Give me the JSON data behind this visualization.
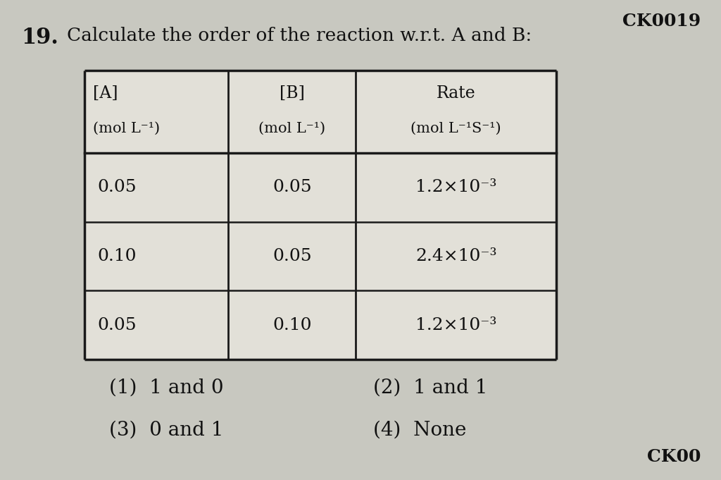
{
  "question_number": "19.",
  "question_text": "Calculate the order of the reaction w.r.t. A and B:",
  "code_top": "CK0019",
  "code_bottom": "CK00",
  "col1_header_line1": "[A]",
  "col1_header_line2": "(mol L⁻¹)",
  "col2_header_line1": "[B]",
  "col2_header_line2": "(mol L⁻¹)",
  "col3_header_line1": "Rate",
  "col3_header_line2": "(mol L⁻¹S⁻¹)",
  "table_col1": [
    "0.05",
    "0.10",
    "0.05"
  ],
  "table_col2": [
    "0.05",
    "0.05",
    "0.10"
  ],
  "table_col3": [
    "1.2×10⁻³",
    "2.4×10⁻³",
    "1.2×10⁻³"
  ],
  "options": [
    "(1)  1 and 0",
    "(2)  1 and 1",
    "(3)  0 and 1",
    "(4)  None"
  ],
  "bg_color": "#c8c8c0",
  "table_bg": "#e2e0d8",
  "border_color": "#1a1a1a",
  "text_color": "#111111"
}
